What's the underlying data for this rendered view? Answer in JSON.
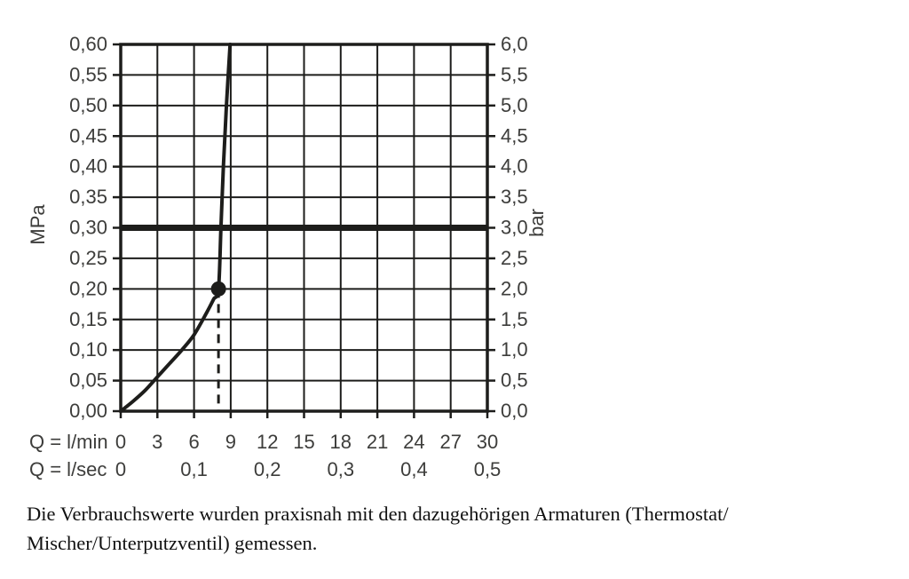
{
  "colors": {
    "line": "#1d1d1b",
    "text": "#3d3d3b",
    "caption_text": "#111111",
    "background": "#ffffff"
  },
  "chart_data": {
    "type": "line",
    "title": "",
    "grid": true,
    "legend": false,
    "x_axis": {
      "unit_primary": "Q = l/min",
      "unit_secondary": "Q = l/sec",
      "min_lmin": 0,
      "max_lmin": 30,
      "ticks_lmin": [
        0,
        3,
        6,
        9,
        12,
        15,
        18,
        21,
        24,
        27,
        30
      ],
      "tick_labels_lmin": [
        "0",
        "3",
        "6",
        "9",
        "12",
        "15",
        "18",
        "21",
        "24",
        "27",
        "30"
      ],
      "lsec_positions_lmin": [
        0,
        6,
        12,
        18,
        24,
        30
      ],
      "tick_labels_lsec": [
        "0",
        "0,1",
        "0,2",
        "0,3",
        "0,4",
        "0,5"
      ]
    },
    "y_axis_left": {
      "unit": "MPa",
      "min_mpa": 0,
      "max_mpa": 0.6,
      "ticks_mpa": [
        0,
        0.05,
        0.1,
        0.15,
        0.2,
        0.25,
        0.3,
        0.35,
        0.4,
        0.45,
        0.5,
        0.55,
        0.6
      ],
      "tick_labels": [
        "0,00",
        "0,05",
        "0,10",
        "0,15",
        "0,20",
        "0,25",
        "0,30",
        "0,35",
        "0,40",
        "0,45",
        "0,50",
        "0,55",
        "0,60"
      ]
    },
    "y_axis_right": {
      "unit": "bar",
      "tick_labels": [
        "0,0",
        "0,5",
        "1,0",
        "1,5",
        "2,0",
        "2,5",
        "3,0",
        "3,5",
        "4,0",
        "4,5",
        "5,0",
        "5,5",
        "6,0"
      ]
    },
    "series": [
      {
        "name": "flow-consumption-curve",
        "points_lmin_mpa": [
          [
            0,
            0
          ],
          [
            1,
            0.016
          ],
          [
            2,
            0.034
          ],
          [
            3,
            0.056
          ],
          [
            4,
            0.078
          ],
          [
            5,
            0.1
          ],
          [
            6,
            0.125
          ],
          [
            7,
            0.16
          ],
          [
            7.6,
            0.183
          ],
          [
            8,
            0.2
          ],
          [
            8.2,
            0.3
          ],
          [
            8.4,
            0.4
          ],
          [
            8.65,
            0.5
          ],
          [
            8.95,
            0.6
          ]
        ]
      }
    ],
    "reference_line_mpa": 0.3,
    "reference_line_bar": 3.0,
    "marker_point": {
      "lmin": 8,
      "mpa": 0.2,
      "bar": 2.0
    }
  },
  "caption": {
    "lines": [
      "Die Verbrauchswerte wurden praxisnah mit den dazugehörigen Armaturen (Thermostat/",
      "Mischer/Unterputzventil) gemessen."
    ]
  }
}
